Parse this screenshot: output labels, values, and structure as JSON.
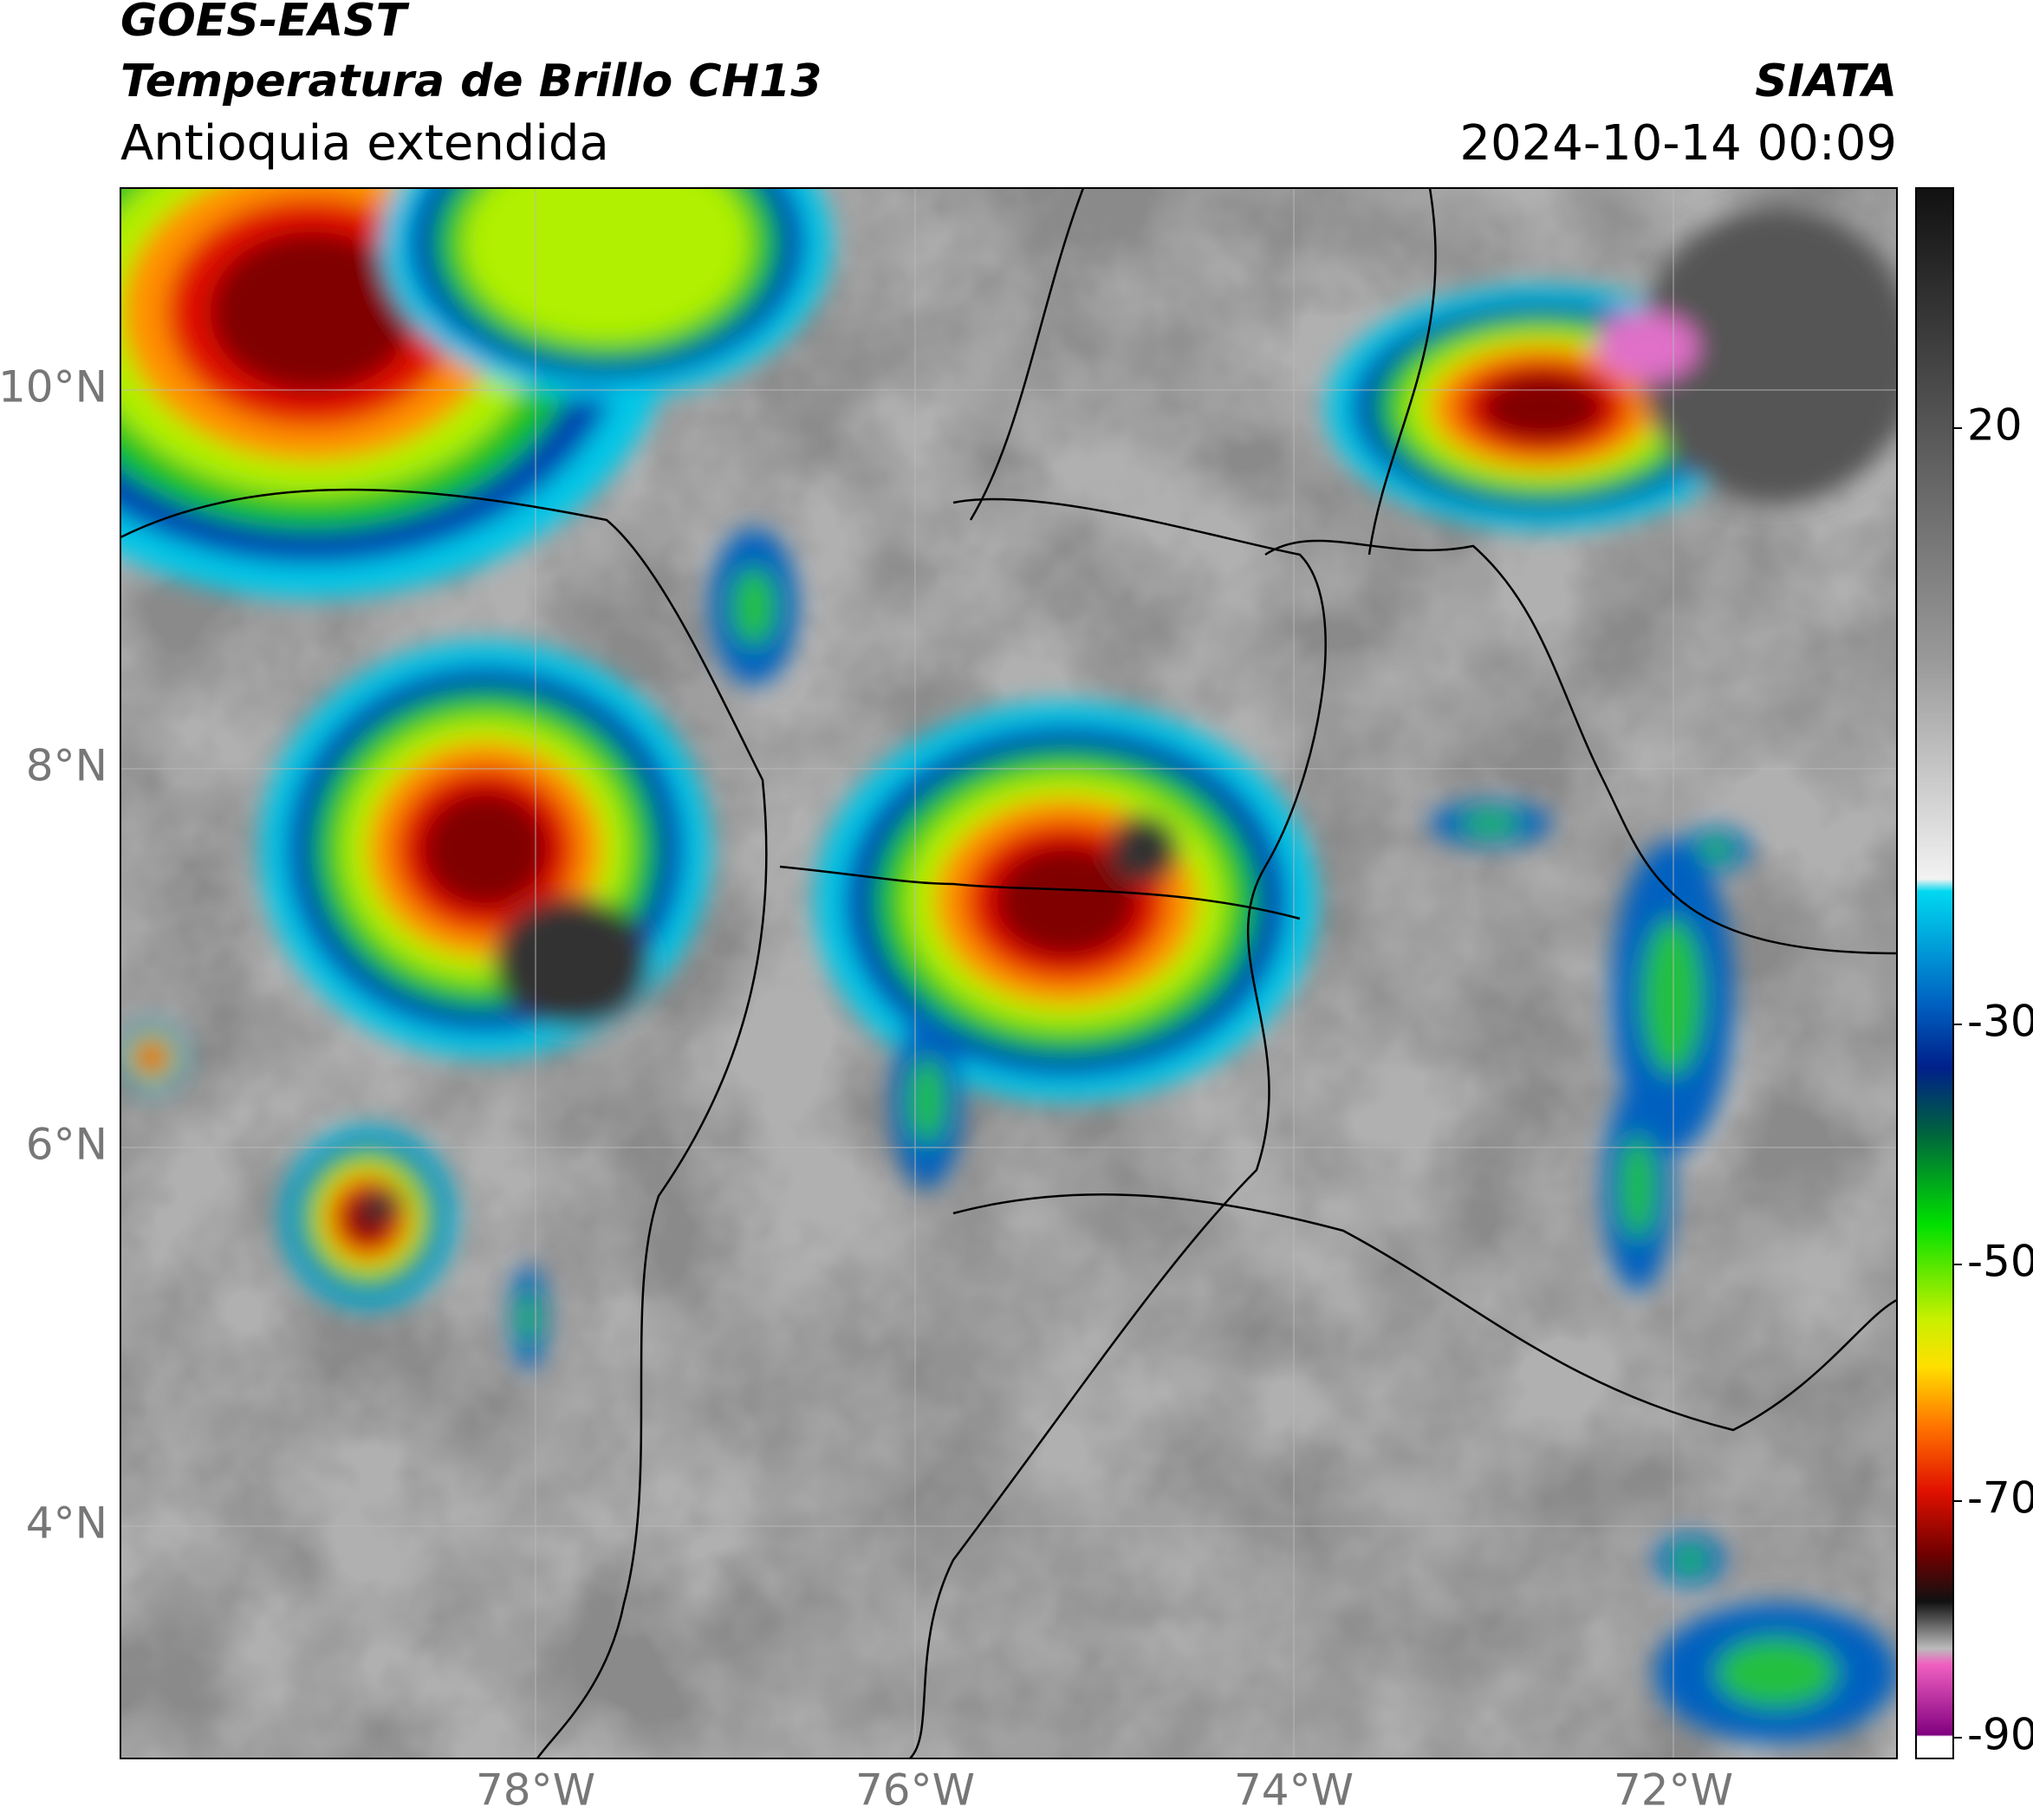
{
  "header": {
    "source": "GOES-EAST",
    "product": "Temperatura de Brillo CH13",
    "region": "Antioquia extendida",
    "agency": "SIATA",
    "datetime": "2024-10-14 00:09"
  },
  "map": {
    "lat_labels": [
      "10°N",
      "8°N",
      "6°N",
      "4°N"
    ],
    "lon_labels": [
      "78°W",
      "76°W",
      "74°W",
      "72°W"
    ]
  },
  "colorbar": {
    "ticks": [
      20,
      -30,
      -50,
      -70,
      -90
    ]
  }
}
